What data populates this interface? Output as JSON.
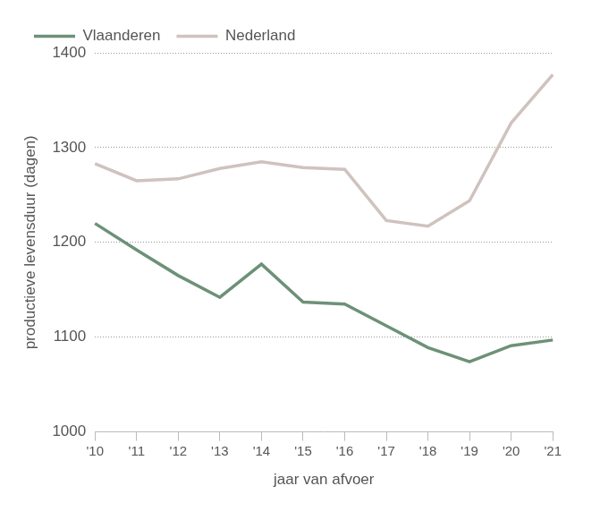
{
  "chart_data": {
    "type": "line",
    "x_label": "jaar van afvoer",
    "y_label": "productieve levensduur (dagen)",
    "categories": [
      "'10",
      "'11",
      "'12",
      "'13",
      "'14",
      "'15",
      "'16",
      "'17",
      "'18",
      "'19",
      "'20",
      "'21"
    ],
    "series": [
      {
        "name": "Vlaanderen",
        "color": "#6d9178",
        "values": [
          1220,
          1192,
          1165,
          1142,
          1177,
          1137,
          1135,
          1112,
          1089,
          1074,
          1091,
          1097
        ]
      },
      {
        "name": "Nederland",
        "color": "#cfc2bf",
        "values": [
          1283,
          1265,
          1267,
          1278,
          1285,
          1279,
          1277,
          1223,
          1217,
          1244,
          1326,
          1377
        ]
      }
    ],
    "ylim": [
      1000,
      1400
    ],
    "yticks": [
      1000,
      1100,
      1200,
      1300,
      1400
    ],
    "grid": true,
    "legend": "top"
  }
}
